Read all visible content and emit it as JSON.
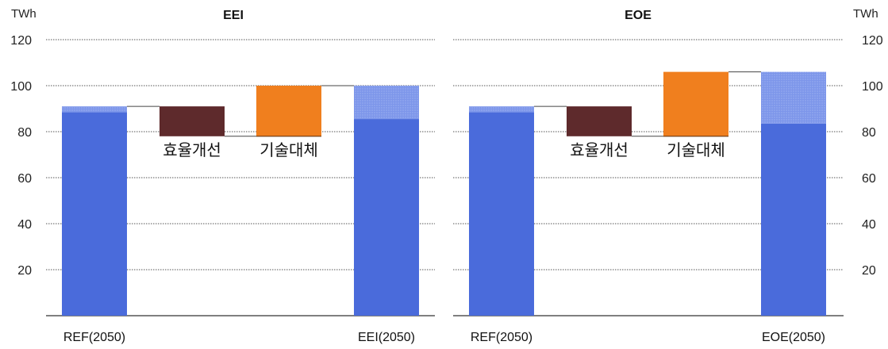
{
  "unit_left": "TWh",
  "unit_right": "TWh",
  "y_ticks": [
    20,
    40,
    60,
    80,
    100,
    120
  ],
  "colors": {
    "base": "#4a6bdb",
    "base_light": "#8aa2ef",
    "efficiency": "#5e2a2c",
    "substitution": "#f07f1e",
    "gridline": "#555555",
    "axis": "#333333"
  },
  "chart_data": [
    {
      "type": "bar",
      "title": "EEI",
      "ylim": [
        0,
        120
      ],
      "categories": [
        "REF(2050)",
        "효율개선",
        "기술대체",
        "EEI(2050)"
      ],
      "segments": {
        "ref": {
          "total": 91,
          "solid": 88.5
        },
        "efficiency": {
          "from": 91,
          "to": 78,
          "label": "효율개선"
        },
        "substitution": {
          "from": 78,
          "to": 100,
          "label": "기술대체"
        },
        "result": {
          "total": 100,
          "solid": 85.5
        }
      }
    },
    {
      "type": "bar",
      "title": "EOE",
      "ylim": [
        0,
        120
      ],
      "categories": [
        "REF(2050)",
        "효율개선",
        "기술대체",
        "EOE(2050)"
      ],
      "segments": {
        "ref": {
          "total": 91,
          "solid": 88.5
        },
        "efficiency": {
          "from": 91,
          "to": 78,
          "label": "효율개선"
        },
        "substitution": {
          "from": 78,
          "to": 106,
          "label": "기술대체"
        },
        "result": {
          "total": 106,
          "solid": 83.5
        }
      }
    }
  ]
}
